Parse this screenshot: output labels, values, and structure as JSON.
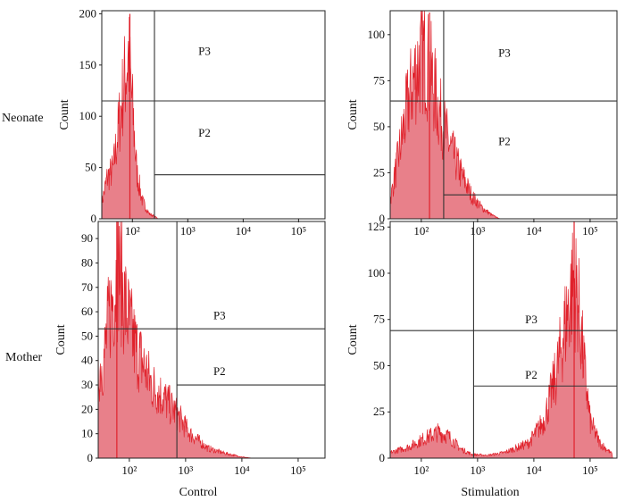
{
  "row_labels": [
    "Neonate",
    "Mother"
  ],
  "column_labels": [
    "Control",
    "Stimulation"
  ],
  "colors": {
    "histogram_fill": "#e8808a",
    "histogram_stroke": "#e0212b",
    "gate": "#333333"
  },
  "chart_data": [
    {
      "type": "histogram",
      "row": "Neonate",
      "column": "Control",
      "xlabel": "",
      "ylabel": "Count",
      "x_scale": "log",
      "xlim": [
        28,
        300000
      ],
      "ylim": [
        0,
        203
      ],
      "yticks": [
        0,
        50,
        100,
        150,
        200
      ],
      "xticks": [
        100,
        1000,
        10000,
        100000
      ],
      "xtick_labels": [
        "10²",
        "10³",
        "10⁴",
        "10⁵"
      ],
      "profile": [
        [
          28,
          15
        ],
        [
          35,
          40
        ],
        [
          45,
          48
        ],
        [
          55,
          85
        ],
        [
          70,
          130
        ],
        [
          85,
          160
        ],
        [
          100,
          110
        ],
        [
          120,
          45
        ],
        [
          150,
          18
        ],
        [
          200,
          5
        ],
        [
          280,
          1
        ]
      ],
      "peak": [
        90,
        200
      ],
      "gates": [
        {
          "name": "P3",
          "x_start": 250,
          "y": 115,
          "label_pos": [
            2000,
            160
          ]
        },
        {
          "name": "P2",
          "x_start": 250,
          "y": 43,
          "label_pos": [
            2000,
            80
          ]
        }
      ],
      "gate_vertical_x": 250
    },
    {
      "type": "histogram",
      "row": "Neonate",
      "column": "Stimulation",
      "xlabel": "",
      "ylabel": "Count",
      "x_scale": "log",
      "xlim": [
        28,
        300000
      ],
      "ylim": [
        0,
        113
      ],
      "yticks": [
        0,
        25,
        50,
        75,
        100
      ],
      "xticks": [
        100,
        1000,
        10000,
        100000
      ],
      "xtick_labels": [
        "10²",
        "10³",
        "10⁴",
        "10⁵"
      ],
      "profile": [
        [
          28,
          10
        ],
        [
          40,
          35
        ],
        [
          60,
          65
        ],
        [
          80,
          80
        ],
        [
          110,
          90
        ],
        [
          150,
          78
        ],
        [
          200,
          60
        ],
        [
          300,
          42
        ],
        [
          500,
          25
        ],
        [
          800,
          12
        ],
        [
          1200,
          6
        ],
        [
          1800,
          2
        ],
        [
          2500,
          0
        ]
      ],
      "peak": [
        140,
        112
      ],
      "gates": [
        {
          "name": "P3",
          "x_start": 250,
          "y": 64,
          "label_pos": [
            3000,
            88
          ]
        },
        {
          "name": "P2",
          "x_start": 250,
          "y": 13,
          "label_pos": [
            3000,
            40
          ]
        }
      ],
      "gate_vertical_x": 250
    },
    {
      "type": "histogram",
      "row": "Mother",
      "column": "Control",
      "xlabel": "Control",
      "ylabel": "Count",
      "x_scale": "log",
      "xlim": [
        28,
        300000
      ],
      "ylim": [
        0,
        97
      ],
      "yticks": [
        0,
        10,
        20,
        30,
        40,
        50,
        60,
        70,
        80,
        90
      ],
      "xticks": [
        100,
        1000,
        10000,
        100000
      ],
      "xtick_labels": [
        "10²",
        "10³",
        "10⁴",
        "10⁵"
      ],
      "profile": [
        [
          28,
          35
        ],
        [
          35,
          40
        ],
        [
          45,
          60
        ],
        [
          55,
          70
        ],
        [
          65,
          80
        ],
        [
          80,
          65
        ],
        [
          100,
          55
        ],
        [
          130,
          45
        ],
        [
          180,
          38
        ],
        [
          250,
          30
        ],
        [
          400,
          25
        ],
        [
          700,
          18
        ],
        [
          1200,
          10
        ],
        [
          2500,
          4
        ],
        [
          5000,
          2
        ],
        [
          10000,
          0.5
        ],
        [
          15000,
          0
        ]
      ],
      "peak": [
        60,
        97
      ],
      "gates": [
        {
          "name": "P3",
          "x_start": 700,
          "y": 53,
          "label_pos": [
            4000,
            57
          ]
        },
        {
          "name": "P2",
          "x_start": 700,
          "y": 30,
          "label_pos": [
            4000,
            34
          ]
        }
      ],
      "gate_vertical_x": 700
    },
    {
      "type": "histogram",
      "row": "Mother",
      "column": "Stimulation",
      "xlabel": "Stimulation",
      "ylabel": "Count",
      "x_scale": "log",
      "xlim": [
        28,
        300000
      ],
      "ylim": [
        0,
        128
      ],
      "yticks": [
        0,
        25,
        50,
        75,
        100,
        125
      ],
      "xticks": [
        100,
        1000,
        10000,
        100000
      ],
      "xtick_labels": [
        "10²",
        "10³",
        "10⁴",
        "10⁵"
      ],
      "profile": [
        [
          28,
          3
        ],
        [
          60,
          6
        ],
        [
          120,
          11
        ],
        [
          200,
          14
        ],
        [
          300,
          12
        ],
        [
          500,
          5
        ],
        [
          800,
          2
        ],
        [
          1500,
          1.5
        ],
        [
          3000,
          3
        ],
        [
          8000,
          8
        ],
        [
          15000,
          20
        ],
        [
          25000,
          45
        ],
        [
          35000,
          70
        ],
        [
          50000,
          95
        ],
        [
          60000,
          88
        ],
        [
          75000,
          55
        ],
        [
          100000,
          20
        ],
        [
          150000,
          8
        ],
        [
          250000,
          2
        ]
      ],
      "peak": [
        52000,
        128
      ],
      "gates": [
        {
          "name": "P3",
          "x_start": 850,
          "y": 69,
          "label_pos": [
            9000,
            73
          ]
        },
        {
          "name": "P2",
          "x_start": 850,
          "y": 39,
          "label_pos": [
            9000,
            43
          ]
        }
      ],
      "gate_vertical_x": 850
    }
  ]
}
